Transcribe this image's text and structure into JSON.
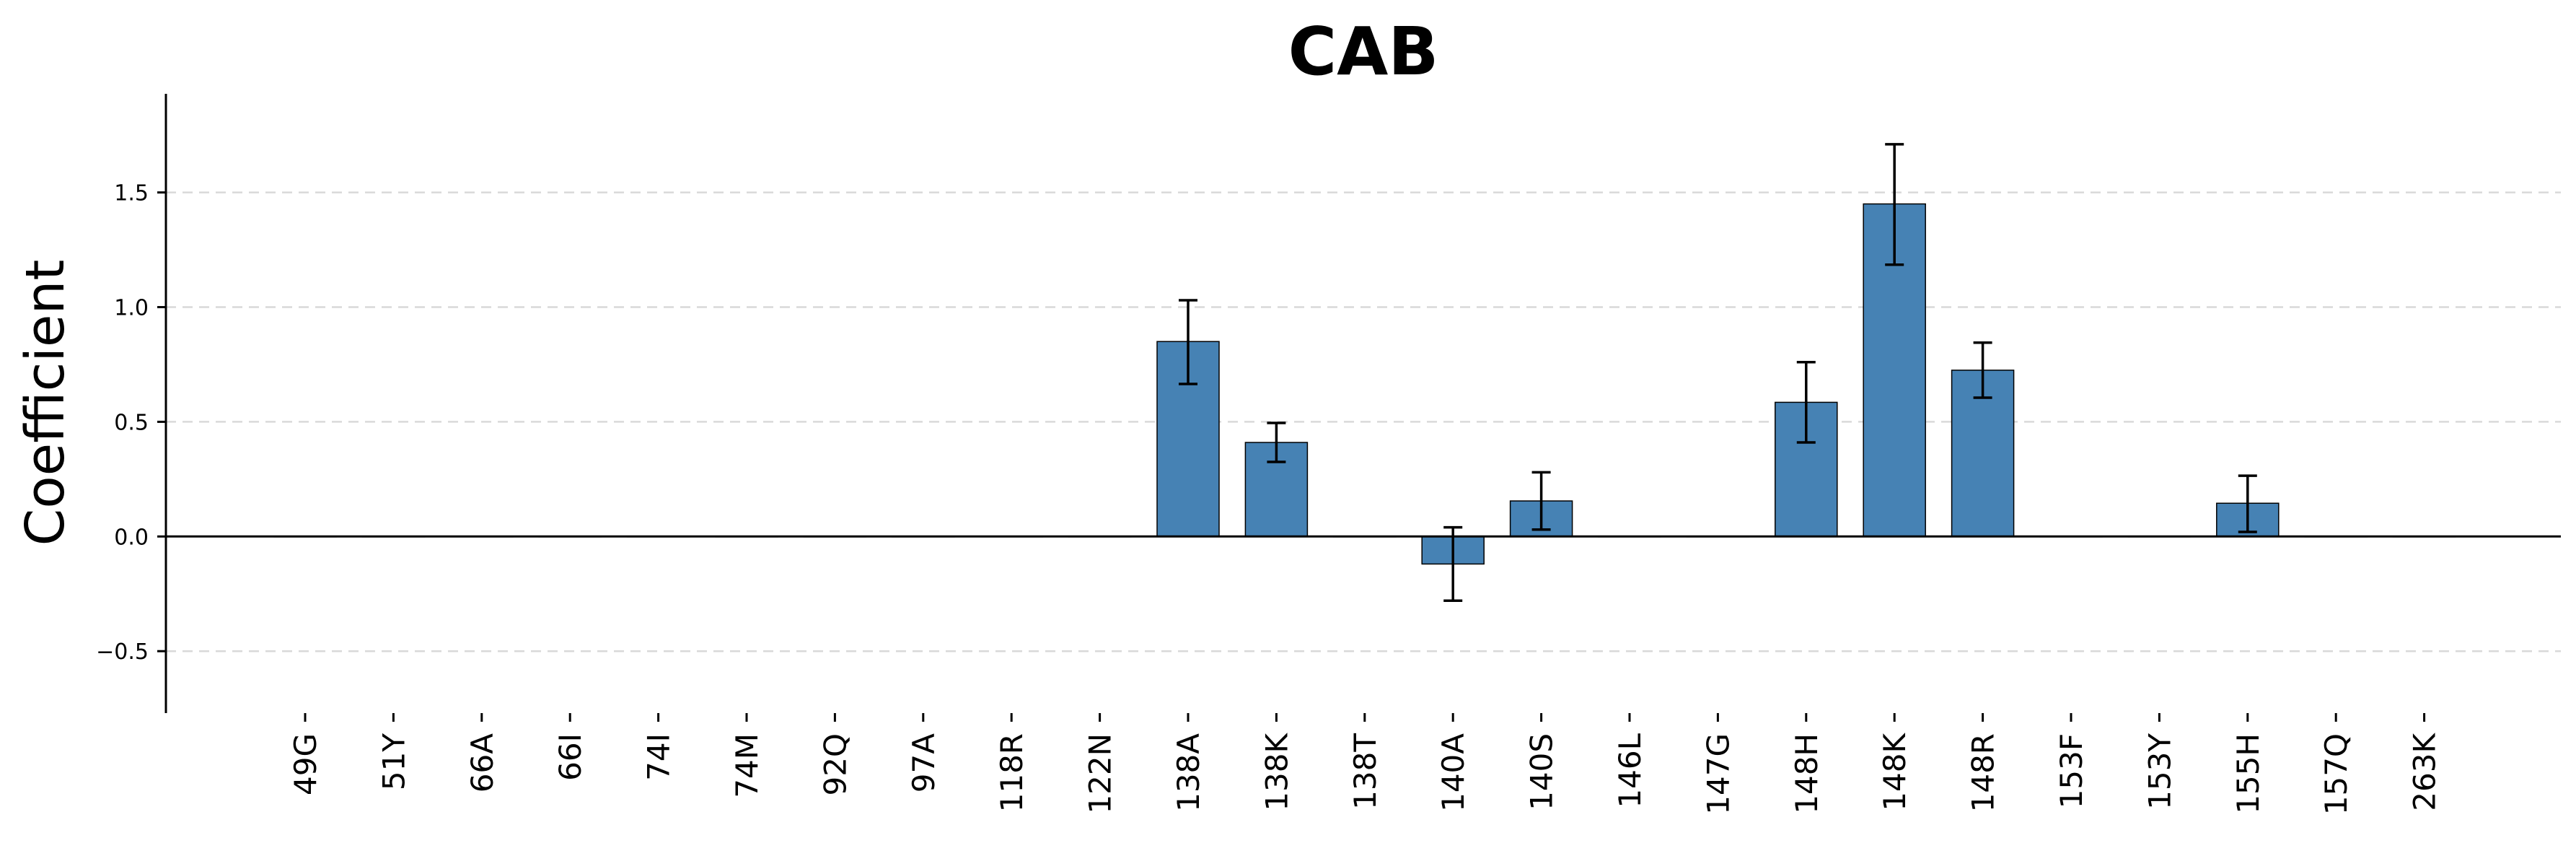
{
  "chart_data": {
    "type": "bar",
    "title": "CAB",
    "xlabel": "",
    "ylabel": "Coefficient",
    "ylim": [
      -0.77,
      1.93
    ],
    "yticks": [
      -0.5,
      0.0,
      0.5,
      1.0,
      1.5
    ],
    "ytick_labels": [
      "−0.5",
      "0.0",
      "0.5",
      "1.0",
      "1.5"
    ],
    "grid": "y dashed",
    "bar_color": "#4682b4",
    "categories": [
      "49G",
      "51Y",
      "66A",
      "66I",
      "74I",
      "74M",
      "92Q",
      "97A",
      "118R",
      "122N",
      "138A",
      "138K",
      "138T",
      "140A",
      "140S",
      "146L",
      "147G",
      "148H",
      "148K",
      "148R",
      "153F",
      "153Y",
      "155H",
      "157Q",
      "263K"
    ],
    "values": [
      0,
      0,
      0,
      0,
      0,
      0,
      0,
      0,
      0,
      0,
      0.85,
      0.41,
      0,
      -0.12,
      0.155,
      0,
      0,
      0.585,
      1.45,
      0.725,
      0,
      0,
      0.145,
      0,
      0
    ],
    "error_low": [
      null,
      null,
      null,
      null,
      null,
      null,
      null,
      null,
      null,
      null,
      0.665,
      0.325,
      null,
      -0.28,
      0.03,
      null,
      null,
      0.41,
      1.185,
      0.605,
      null,
      null,
      0.02,
      null,
      null
    ],
    "error_high": [
      null,
      null,
      null,
      null,
      null,
      null,
      null,
      null,
      null,
      null,
      1.03,
      0.495,
      null,
      0.04,
      0.28,
      null,
      null,
      0.76,
      1.71,
      0.845,
      null,
      null,
      0.265,
      null,
      null
    ]
  }
}
